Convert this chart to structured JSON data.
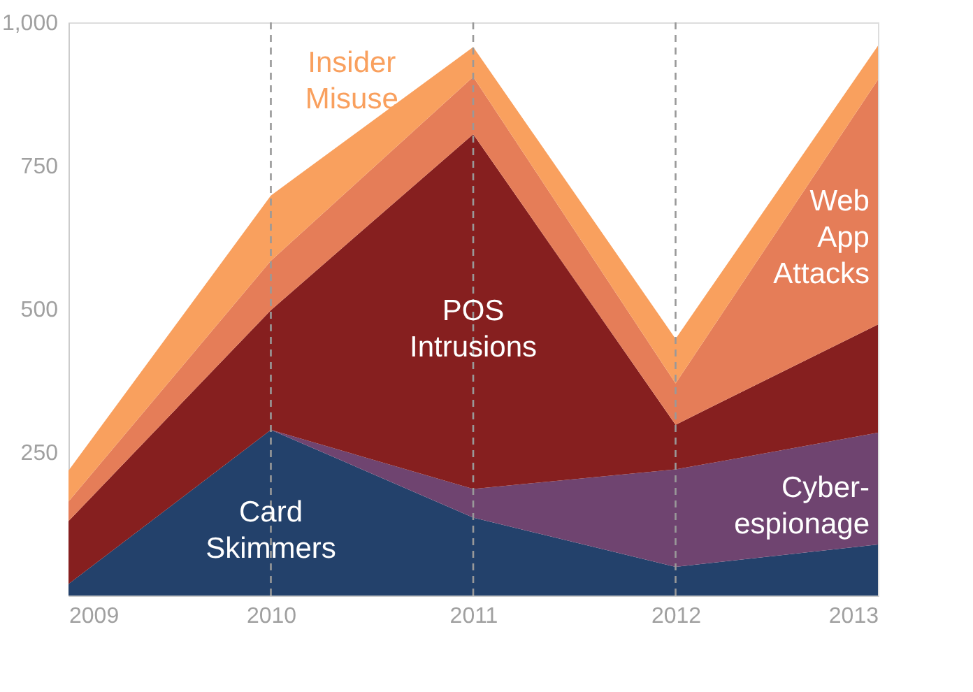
{
  "chart_data": {
    "type": "area",
    "stacked": true,
    "x": [
      2009,
      2010,
      2011,
      2012,
      2013
    ],
    "xlim": [
      2009,
      2013
    ],
    "xticks": [
      2009,
      2010,
      2011,
      2012,
      2013
    ],
    "ylim": [
      0,
      1000
    ],
    "yticks": [
      250,
      500,
      750,
      {
        "value": 1000,
        "label": "1,000"
      }
    ],
    "grid": false,
    "legend": false,
    "series": [
      {
        "name": "Card Skimmers",
        "color": "#23416b",
        "values": [
          20,
          289,
          136,
          50,
          89
        ]
      },
      {
        "name": "Cyber-espionage",
        "color": "#6f4470",
        "values": [
          0,
          0,
          50,
          170,
          195
        ]
      },
      {
        "name": "POS Intrusions",
        "color": "#861f1f",
        "values": [
          110,
          209,
          619,
          78,
          189
        ]
      },
      {
        "name": "Web App Attacks",
        "color": "#e57d58",
        "values": [
          34,
          86,
          100,
          72,
          427
        ]
      },
      {
        "name": "Insider Misuse",
        "color": "#f9a05e",
        "values": [
          54,
          114,
          52,
          78,
          59
        ]
      }
    ],
    "ref_lines": [
      {
        "axis": "x",
        "value": 2010,
        "color": "#999999",
        "line_style": "dashed"
      },
      {
        "axis": "x",
        "value": 2011,
        "color": "#999999",
        "line_style": "dashed"
      },
      {
        "axis": "x",
        "value": 2012,
        "color": "#999999",
        "line_style": "dashed"
      }
    ]
  }
}
